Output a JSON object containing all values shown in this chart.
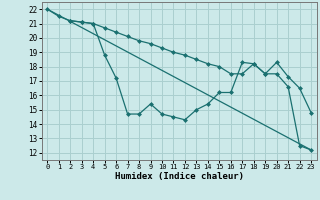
{
  "xlabel": "Humidex (Indice chaleur)",
  "bg_color": "#cce9e9",
  "grid_color": "#aacfcf",
  "line_color": "#1a7070",
  "xlim": [
    -0.5,
    23.5
  ],
  "ylim": [
    11.5,
    22.5
  ],
  "xticks": [
    0,
    1,
    2,
    3,
    4,
    5,
    6,
    7,
    8,
    9,
    10,
    11,
    12,
    13,
    14,
    15,
    16,
    17,
    18,
    19,
    20,
    21,
    22,
    23
  ],
  "yticks": [
    12,
    13,
    14,
    15,
    16,
    17,
    18,
    19,
    20,
    21,
    22
  ],
  "line1_x": [
    0,
    1,
    2,
    3,
    4,
    5,
    6,
    7,
    8,
    9,
    10,
    11,
    12,
    13,
    14,
    15,
    16,
    17,
    18,
    19,
    20,
    21,
    22,
    23
  ],
  "line1_y": [
    22.0,
    21.5,
    21.2,
    21.1,
    21.0,
    20.7,
    20.4,
    20.1,
    19.8,
    19.6,
    19.3,
    19.0,
    18.8,
    18.5,
    18.2,
    18.0,
    17.5,
    17.5,
    18.2,
    17.5,
    17.5,
    16.6,
    12.5,
    12.2
  ],
  "line2_x": [
    0,
    23
  ],
  "line2_y": [
    22.0,
    12.2
  ],
  "line3_x": [
    2,
    3,
    4,
    5,
    6,
    7,
    8,
    9,
    10,
    11,
    12,
    13,
    14,
    15,
    16,
    17,
    18,
    19,
    20,
    21,
    22,
    23
  ],
  "line3_y": [
    21.2,
    21.1,
    21.0,
    18.8,
    17.2,
    14.7,
    14.7,
    15.4,
    14.7,
    14.5,
    14.3,
    15.0,
    15.4,
    16.2,
    16.2,
    18.3,
    18.2,
    17.5,
    18.3,
    17.3,
    16.5,
    14.8
  ]
}
